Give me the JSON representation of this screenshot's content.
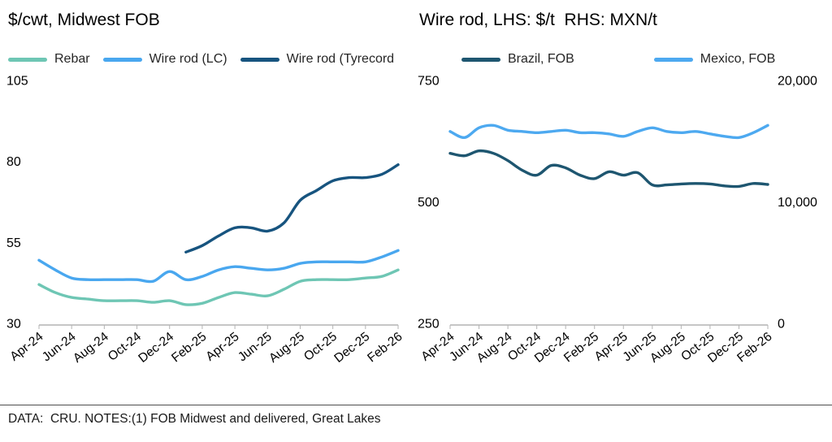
{
  "footer": {
    "text": "DATA:  CRU. NOTES:(1) FOB Midwest and delivered, Great Lakes"
  },
  "colors": {
    "rebar": "#6ec6b4",
    "wire_rod_lc": "#49a7ef",
    "wire_rod_tyrecord": "#17547f",
    "brazil_fob": "#1e5670",
    "mexico_fob": "#4da9f0",
    "axis": "#b3b3b3",
    "text": "#000000"
  },
  "chart_data": [
    {
      "type": "line",
      "title": "$/cwt, Midwest FOB",
      "xlabel": "",
      "ylabel": "$/cwt",
      "grid": false,
      "legend_position": "top",
      "x_tick_every": 2,
      "x": [
        "Apr-24",
        "May-24",
        "Jun-24",
        "Jul-24",
        "Aug-24",
        "Sep-24",
        "Oct-24",
        "Nov-24",
        "Dec-24",
        "Jan-25",
        "Feb-25",
        "Mar-25",
        "Apr-25",
        "May-25",
        "Jun-25",
        "Jul-25",
        "Aug-25",
        "Sep-25",
        "Oct-25",
        "Nov-25",
        "Dec-25",
        "Jan-26",
        "Feb-26"
      ],
      "axes": {
        "left": {
          "lim": [
            30,
            105
          ],
          "ticks": [
            30,
            55,
            80,
            105
          ]
        }
      },
      "series": [
        {
          "name": "Rebar",
          "axis": "left",
          "color": "#6ec6b4",
          "values": [
            42,
            39.5,
            38,
            37.5,
            37,
            37,
            37,
            36.5,
            37,
            35.8,
            36.2,
            38,
            39.5,
            39,
            38.5,
            40.5,
            43,
            43.5,
            43.5,
            43.5,
            44,
            44.5,
            46.5
          ]
        },
        {
          "name": "Wire rod (LC)",
          "axis": "left",
          "color": "#49a7ef",
          "values": [
            49.5,
            46.5,
            44,
            43.5,
            43.5,
            43.5,
            43.5,
            43,
            46,
            43.5,
            44.5,
            46.5,
            47.5,
            47,
            46.5,
            47,
            48.5,
            49,
            49,
            49,
            49,
            50.5,
            52.5
          ]
        },
        {
          "name": "Wire rod (Tyrecord",
          "axis": "left",
          "color": "#17547f",
          "values": [
            null,
            null,
            null,
            null,
            null,
            null,
            null,
            null,
            null,
            52,
            54,
            57,
            59.5,
            59.5,
            58.5,
            61,
            68,
            71,
            74,
            75,
            75,
            76,
            79
          ]
        }
      ]
    },
    {
      "type": "line",
      "title": "Wire rod, LHS: $/t  RHS: MXN/t",
      "xlabel": "",
      "ylabel": "$/t (LHS), MXN/t (RHS)",
      "grid": false,
      "legend_position": "top",
      "x_tick_every": 2,
      "x": [
        "Apr-24",
        "May-24",
        "Jun-24",
        "Jul-24",
        "Aug-24",
        "Sep-24",
        "Oct-24",
        "Nov-24",
        "Dec-24",
        "Jan-25",
        "Feb-25",
        "Mar-25",
        "Apr-25",
        "May-25",
        "Jun-25",
        "Jul-25",
        "Aug-25",
        "Sep-25",
        "Oct-25",
        "Nov-25",
        "Dec-25",
        "Jan-26",
        "Feb-26"
      ],
      "axes": {
        "left": {
          "lim": [
            250,
            750
          ],
          "ticks": [
            250,
            500,
            750
          ]
        },
        "right": {
          "lim": [
            0,
            20000
          ],
          "ticks": [
            0,
            10000,
            20000
          ],
          "labels": [
            "0",
            "10,000",
            "20,000"
          ]
        }
      },
      "series": [
        {
          "name": "Brazil, FOB",
          "axis": "left",
          "color": "#1e5670",
          "values": [
            600,
            595,
            605,
            600,
            585,
            565,
            555,
            575,
            570,
            555,
            548,
            562,
            555,
            560,
            535,
            535,
            537,
            538,
            537,
            533,
            532,
            538,
            536
          ]
        },
        {
          "name": "Mexico, FOB",
          "axis": "right",
          "color": "#4da9f0",
          "values": [
            15800,
            15300,
            16100,
            16300,
            15900,
            15800,
            15700,
            15800,
            15900,
            15700,
            15700,
            15600,
            15400,
            15800,
            16100,
            15800,
            15700,
            15800,
            15600,
            15400,
            15300,
            15700,
            16300
          ]
        }
      ]
    }
  ]
}
